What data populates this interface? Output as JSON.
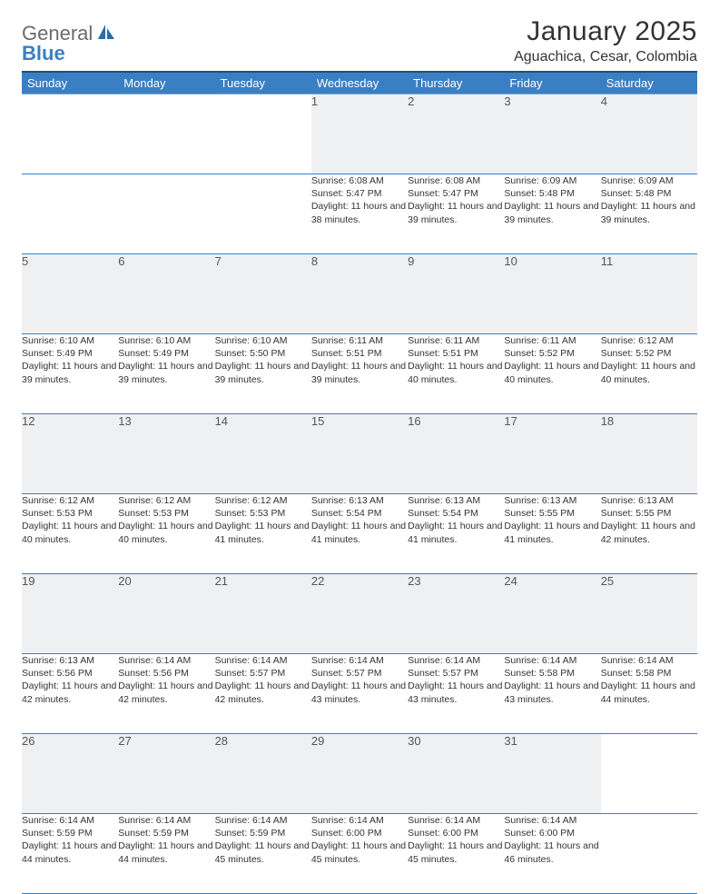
{
  "branding": {
    "text1": "General",
    "text2": "Blue",
    "logo_color": "#2f6aa8"
  },
  "title": "January 2025",
  "location": "Aguachica, Cesar, Colombia",
  "colors": {
    "header_bg": "#3a7fc4",
    "header_text": "#ffffff",
    "daynum_bg": "#eef0f2",
    "rule": "#3a7fc4",
    "page_bg": "#ffffff",
    "body_text": "#333333"
  },
  "typography": {
    "title_fontsize": 30,
    "location_fontsize": 16,
    "header_fontsize": 13,
    "daynum_fontsize": 13,
    "cell_fontsize": 10.5
  },
  "weekdays": [
    "Sunday",
    "Monday",
    "Tuesday",
    "Wednesday",
    "Thursday",
    "Friday",
    "Saturday"
  ],
  "weeks": [
    [
      null,
      null,
      null,
      {
        "n": "1",
        "sunrise": "6:08 AM",
        "sunset": "5:47 PM",
        "daylight": "11 hours and 38 minutes."
      },
      {
        "n": "2",
        "sunrise": "6:08 AM",
        "sunset": "5:47 PM",
        "daylight": "11 hours and 39 minutes."
      },
      {
        "n": "3",
        "sunrise": "6:09 AM",
        "sunset": "5:48 PM",
        "daylight": "11 hours and 39 minutes."
      },
      {
        "n": "4",
        "sunrise": "6:09 AM",
        "sunset": "5:48 PM",
        "daylight": "11 hours and 39 minutes."
      }
    ],
    [
      {
        "n": "5",
        "sunrise": "6:10 AM",
        "sunset": "5:49 PM",
        "daylight": "11 hours and 39 minutes."
      },
      {
        "n": "6",
        "sunrise": "6:10 AM",
        "sunset": "5:49 PM",
        "daylight": "11 hours and 39 minutes."
      },
      {
        "n": "7",
        "sunrise": "6:10 AM",
        "sunset": "5:50 PM",
        "daylight": "11 hours and 39 minutes."
      },
      {
        "n": "8",
        "sunrise": "6:11 AM",
        "sunset": "5:51 PM",
        "daylight": "11 hours and 39 minutes."
      },
      {
        "n": "9",
        "sunrise": "6:11 AM",
        "sunset": "5:51 PM",
        "daylight": "11 hours and 40 minutes."
      },
      {
        "n": "10",
        "sunrise": "6:11 AM",
        "sunset": "5:52 PM",
        "daylight": "11 hours and 40 minutes."
      },
      {
        "n": "11",
        "sunrise": "6:12 AM",
        "sunset": "5:52 PM",
        "daylight": "11 hours and 40 minutes."
      }
    ],
    [
      {
        "n": "12",
        "sunrise": "6:12 AM",
        "sunset": "5:53 PM",
        "daylight": "11 hours and 40 minutes."
      },
      {
        "n": "13",
        "sunrise": "6:12 AM",
        "sunset": "5:53 PM",
        "daylight": "11 hours and 40 minutes."
      },
      {
        "n": "14",
        "sunrise": "6:12 AM",
        "sunset": "5:53 PM",
        "daylight": "11 hours and 41 minutes."
      },
      {
        "n": "15",
        "sunrise": "6:13 AM",
        "sunset": "5:54 PM",
        "daylight": "11 hours and 41 minutes."
      },
      {
        "n": "16",
        "sunrise": "6:13 AM",
        "sunset": "5:54 PM",
        "daylight": "11 hours and 41 minutes."
      },
      {
        "n": "17",
        "sunrise": "6:13 AM",
        "sunset": "5:55 PM",
        "daylight": "11 hours and 41 minutes."
      },
      {
        "n": "18",
        "sunrise": "6:13 AM",
        "sunset": "5:55 PM",
        "daylight": "11 hours and 42 minutes."
      }
    ],
    [
      {
        "n": "19",
        "sunrise": "6:13 AM",
        "sunset": "5:56 PM",
        "daylight": "11 hours and 42 minutes."
      },
      {
        "n": "20",
        "sunrise": "6:14 AM",
        "sunset": "5:56 PM",
        "daylight": "11 hours and 42 minutes."
      },
      {
        "n": "21",
        "sunrise": "6:14 AM",
        "sunset": "5:57 PM",
        "daylight": "11 hours and 42 minutes."
      },
      {
        "n": "22",
        "sunrise": "6:14 AM",
        "sunset": "5:57 PM",
        "daylight": "11 hours and 43 minutes."
      },
      {
        "n": "23",
        "sunrise": "6:14 AM",
        "sunset": "5:57 PM",
        "daylight": "11 hours and 43 minutes."
      },
      {
        "n": "24",
        "sunrise": "6:14 AM",
        "sunset": "5:58 PM",
        "daylight": "11 hours and 43 minutes."
      },
      {
        "n": "25",
        "sunrise": "6:14 AM",
        "sunset": "5:58 PM",
        "daylight": "11 hours and 44 minutes."
      }
    ],
    [
      {
        "n": "26",
        "sunrise": "6:14 AM",
        "sunset": "5:59 PM",
        "daylight": "11 hours and 44 minutes."
      },
      {
        "n": "27",
        "sunrise": "6:14 AM",
        "sunset": "5:59 PM",
        "daylight": "11 hours and 44 minutes."
      },
      {
        "n": "28",
        "sunrise": "6:14 AM",
        "sunset": "5:59 PM",
        "daylight": "11 hours and 45 minutes."
      },
      {
        "n": "29",
        "sunrise": "6:14 AM",
        "sunset": "6:00 PM",
        "daylight": "11 hours and 45 minutes."
      },
      {
        "n": "30",
        "sunrise": "6:14 AM",
        "sunset": "6:00 PM",
        "daylight": "11 hours and 45 minutes."
      },
      {
        "n": "31",
        "sunrise": "6:14 AM",
        "sunset": "6:00 PM",
        "daylight": "11 hours and 46 minutes."
      },
      null
    ]
  ],
  "labels": {
    "sunrise": "Sunrise:",
    "sunset": "Sunset:",
    "daylight": "Daylight:"
  }
}
